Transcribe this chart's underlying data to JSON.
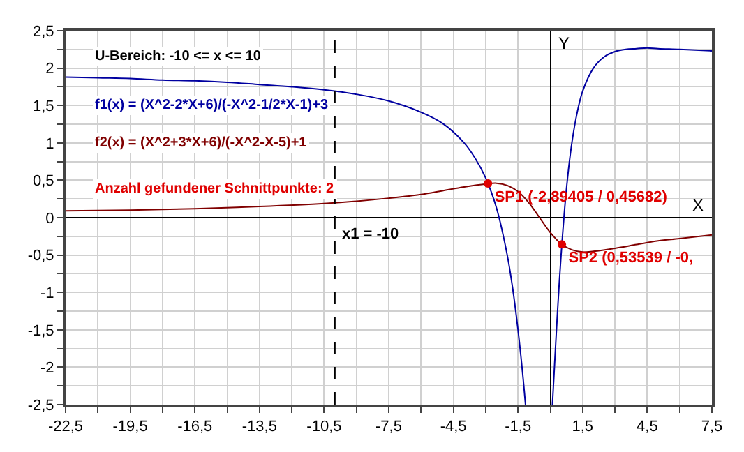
{
  "chart_data": {
    "type": "line",
    "xlabel": "X",
    "ylabel": "Y",
    "annotations": [
      "U-Bereich: -10 <= x <= 10",
      "Anzahl gefundener Schnittpunkte: 2"
    ],
    "xlim": [
      -22.5,
      7.5
    ],
    "xticks": [
      {
        "value": -22.5,
        "label": "-22,5"
      },
      {
        "value": -21,
        "label": null
      },
      {
        "value": -19.5,
        "label": "-19,5"
      },
      {
        "value": -18,
        "label": null
      },
      {
        "value": -16.5,
        "label": "-16,5"
      },
      {
        "value": -15,
        "label": null
      },
      {
        "value": -13.5,
        "label": "-13,5"
      },
      {
        "value": -12,
        "label": null
      },
      {
        "value": -10.5,
        "label": "-10,5"
      },
      {
        "value": -9,
        "label": null
      },
      {
        "value": -7.5,
        "label": "-7,5"
      },
      {
        "value": -6,
        "label": null
      },
      {
        "value": -4.5,
        "label": "-4,5"
      },
      {
        "value": -3,
        "label": null
      },
      {
        "value": -1.5,
        "label": "-1,5"
      },
      {
        "value": 0,
        "label": null
      },
      {
        "value": 1.5,
        "label": "1,5"
      },
      {
        "value": 3,
        "label": null
      },
      {
        "value": 4.5,
        "label": "4,5"
      },
      {
        "value": 6,
        "label": null
      },
      {
        "value": 7.5,
        "label": "7,5"
      }
    ],
    "ylim": [
      -2.5,
      2.5
    ],
    "yticks": [
      {
        "value": -2.5,
        "label": "-2,5"
      },
      {
        "value": -2.25,
        "label": null
      },
      -2,
      {
        "value": -1.75,
        "label": null
      },
      {
        "value": -1.5,
        "label": "-1,5"
      },
      {
        "value": -1.25,
        "label": null
      },
      -1,
      {
        "value": -0.75,
        "label": null
      },
      {
        "value": -0.5,
        "label": "-0,5"
      },
      {
        "value": -0.25,
        "label": null
      },
      0,
      {
        "value": 0.25,
        "label": null
      },
      {
        "value": 0.5,
        "label": "0,5"
      },
      {
        "value": 0.75,
        "label": null
      },
      1,
      {
        "value": 1.25,
        "label": null
      },
      {
        "value": 1.5,
        "label": "1,5"
      },
      {
        "value": 1.75,
        "label": null
      },
      2,
      {
        "value": 2.25,
        "label": null
      },
      {
        "value": 2.5,
        "label": "2,5"
      }
    ],
    "grid": true,
    "ref_lines": [
      {
        "axis": "x",
        "value": -10,
        "label": "x1 = -10",
        "color": "#000000",
        "line_style": "dashed"
      }
    ],
    "series": [
      {
        "name": "f1(x) = (X^2-2*X+6)/(-X^2-1/2*X-1)+3",
        "color": "#0000a0",
        "marker": "none",
        "x": [
          -22.5,
          -21,
          -19.5,
          -18,
          -16.5,
          -15,
          -13.5,
          -12,
          -10.5,
          -9,
          -7.5,
          -6,
          -5,
          -4,
          -3.5,
          -3,
          -2.5,
          -2,
          -1.75,
          -1.5,
          -1.3,
          -1.152,
          -0.5,
          0.0964,
          0.2,
          0.35,
          0.5,
          0.75,
          1,
          1.25,
          1.5,
          2,
          2.5,
          3,
          3.5,
          4,
          4.5,
          5,
          6,
          7.5
        ],
        "values": [
          1.88,
          1.87,
          1.86,
          1.84,
          1.83,
          1.81,
          1.78,
          1.75,
          1.71,
          1.65,
          1.56,
          1.41,
          1.26,
          1.0,
          0.8,
          0.53,
          0.13,
          -0.5,
          -0.94,
          -1.5,
          -2.04,
          -2.5,
          null,
          -2.5,
          -1.95,
          -1.18,
          -0.5,
          0.39,
          1.0,
          1.41,
          1.69,
          2.0,
          2.15,
          2.22,
          2.25,
          2.26,
          2.27,
          2.26,
          2.25,
          2.23
        ]
      },
      {
        "name": "f2(x) = (X^2+3*X+6)/(-X^2-X-5)+1",
        "color": "#800000",
        "marker": "none",
        "x": [
          -22.5,
          -19.5,
          -16.5,
          -13.5,
          -10.5,
          -9,
          -7.5,
          -6,
          -5,
          -4,
          -3,
          -2.5,
          -2,
          -1.5,
          -1,
          -0.5,
          0,
          0.5,
          1,
          1.5,
          2,
          3,
          4,
          5,
          6,
          7.5
        ],
        "values": [
          0.09,
          0.1,
          0.12,
          0.15,
          0.19,
          0.22,
          0.26,
          0.31,
          0.36,
          0.41,
          0.45,
          0.46,
          0.43,
          0.35,
          0.2,
          0.0,
          -0.2,
          -0.35,
          -0.43,
          -0.46,
          -0.45,
          -0.41,
          -0.36,
          -0.31,
          -0.28,
          -0.23
        ]
      },
      {
        "type": "scatter",
        "color": "#e00000",
        "marker": "circle",
        "x": [
          -2.89405,
          0.53539
        ],
        "values": [
          0.45682,
          -0.356
        ],
        "value_labels": [
          "SP1 (-2,89405 / 0,45682)",
          "SP2 (0,53539 / -0,"
        ]
      }
    ]
  }
}
